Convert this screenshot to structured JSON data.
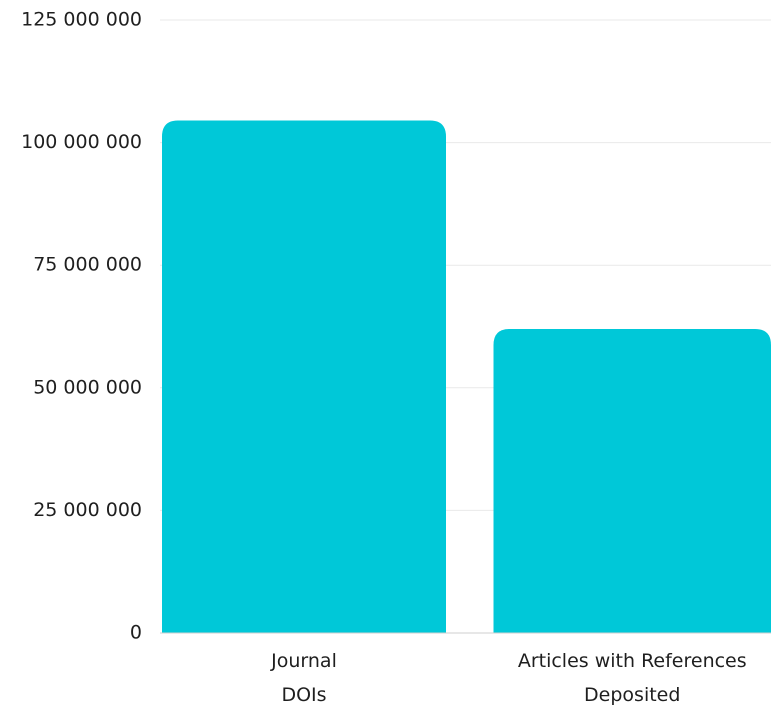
{
  "chart_data": {
    "type": "bar",
    "categories": [
      [
        "Journal",
        "DOIs"
      ],
      [
        "Articles with References",
        "Deposited"
      ]
    ],
    "values": [
      104500000,
      62000000
    ],
    "ylim": [
      0,
      125000000
    ],
    "yticks": [
      0,
      25000000,
      50000000,
      75000000,
      100000000,
      125000000
    ],
    "ytick_labels": [
      "0",
      "25 000 000",
      "50 000 000",
      "75 000 000",
      "100 000 000",
      "125 000 000"
    ],
    "grid": true,
    "bar_color": "#00C8D8"
  }
}
